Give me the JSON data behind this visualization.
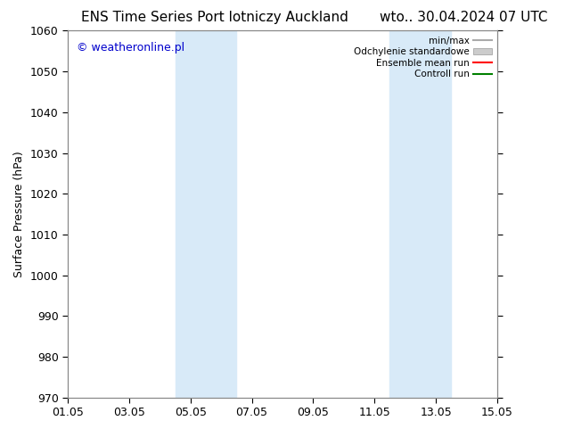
{
  "title_left": "ENS Time Series Port lotniczy Auckland",
  "title_right": "wto.. 30.04.2024 07 UTC",
  "ylabel": "Surface Pressure (hPa)",
  "watermark": "© weatheronline.pl",
  "watermark_color": "#0000cc",
  "ylim": [
    970,
    1060
  ],
  "yticks": [
    970,
    980,
    990,
    1000,
    1010,
    1020,
    1030,
    1040,
    1050,
    1060
  ],
  "xlim": [
    0,
    14
  ],
  "xtick_labels": [
    "01.05",
    "03.05",
    "05.05",
    "07.05",
    "09.05",
    "11.05",
    "13.05",
    "15.05"
  ],
  "xtick_positions": [
    0,
    2,
    4,
    6,
    8,
    10,
    12,
    14
  ],
  "weekend_bands": [
    {
      "start": 3.5,
      "end": 5.5
    },
    {
      "start": 10.5,
      "end": 12.5
    }
  ],
  "weekend_color": "#d8eaf8",
  "background_color": "#ffffff",
  "plot_bg_color": "#ffffff",
  "legend": {
    "min_max_label": "min/max",
    "min_max_color": "#aaaaaa",
    "std_label": "Odchylenie standardowe",
    "std_color": "#cccccc",
    "mean_label": "Ensemble mean run",
    "mean_color": "#ff0000",
    "control_label": "Controll run",
    "control_color": "#008000"
  },
  "title_fontsize": 11,
  "tick_fontsize": 9,
  "label_fontsize": 9,
  "watermark_fontsize": 9
}
